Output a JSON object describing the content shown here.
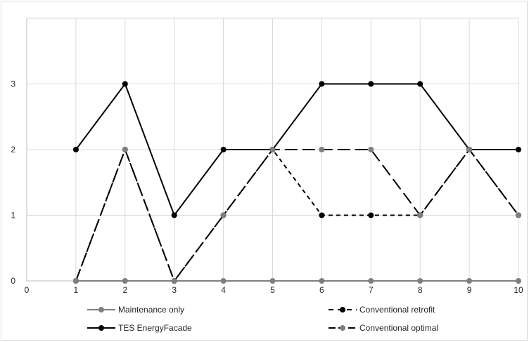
{
  "chart_data": {
    "type": "line",
    "title": "",
    "xlabel": "",
    "ylabel": "",
    "x": [
      1,
      2,
      3,
      4,
      5,
      6,
      7,
      8,
      9,
      10
    ],
    "xlim": [
      0,
      10
    ],
    "ylim": [
      0,
      4
    ],
    "x_ticks": [
      "0",
      "1",
      "2",
      "3",
      "4",
      "5",
      "6",
      "7",
      "8",
      "9",
      "10"
    ],
    "y_ticks": [
      "0",
      "1",
      "2",
      "3"
    ],
    "grid": true,
    "legend_position": "bottom",
    "series": [
      {
        "name": "Maintenance only",
        "values": [
          0,
          0,
          0,
          0,
          0,
          0,
          0,
          0,
          0,
          0
        ],
        "color": "#7f7f7f",
        "line_style": "solid",
        "marker_color": "#7f7f7f"
      },
      {
        "name": "Conventional retrofit",
        "values": [
          0,
          2,
          0,
          1,
          2,
          1,
          1,
          1,
          2,
          1
        ],
        "color": "#000000",
        "line_style": "dashed-short",
        "marker_color": "#000000"
      },
      {
        "name": "TES EnergyFacade",
        "values": [
          2,
          3,
          1,
          2,
          2,
          3,
          3,
          3,
          2,
          2
        ],
        "color": "#000000",
        "line_style": "solid",
        "marker_color": "#000000"
      },
      {
        "name": "Conventional optimal",
        "values": [
          0,
          2,
          0,
          1,
          2,
          2,
          2,
          1,
          2,
          1
        ],
        "color": "#000000",
        "line_style": "dashed-long",
        "marker_color": "#7f7f7f"
      }
    ]
  }
}
